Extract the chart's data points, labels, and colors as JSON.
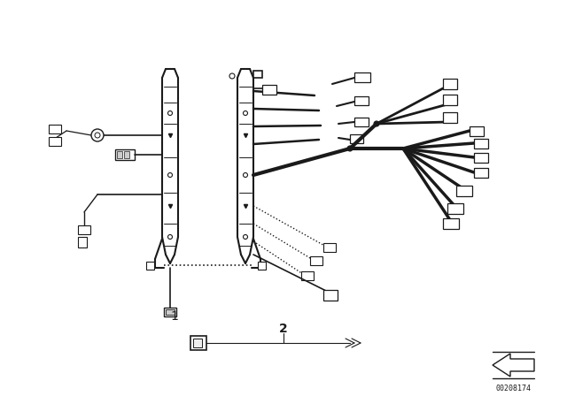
{
  "bg_color": "#ffffff",
  "line_color": "#1a1a1a",
  "fig_width": 6.4,
  "fig_height": 4.48,
  "dpi": 100,
  "part_number": "00208174",
  "label1": "1",
  "label2": "2"
}
